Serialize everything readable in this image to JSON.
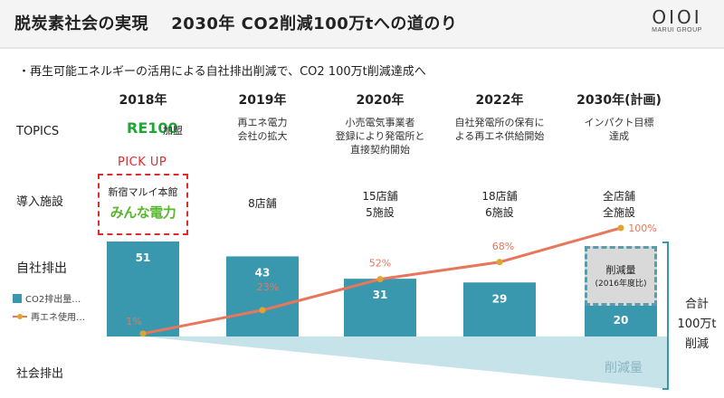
{
  "header": {
    "title": "脱炭素社会の実現　 2030年 CO2削減100万tへの道のり",
    "logo_mark": "OIOI",
    "logo_text": "MARUI GROUP"
  },
  "subtitle": "・再生可能エネルギーの活用による自社排出削減で、CO2 100万t削減達成へ",
  "row_labels": {
    "topics": "TOPICS",
    "facilities": "導入施設",
    "own_emissions": "自社排出",
    "social_emissions": "社会排出"
  },
  "topics": {
    "re100": "RE100",
    "re100_suffix": "加盟",
    "y2019": "再エネ電力\n会社の拡大",
    "y2020": "小売電気事業者\n登録により発電所と\n直接契約開始",
    "y2022": "自社発電所の保有に\nよる再エネ供給開始",
    "y2030": "インパクト目標\n達成"
  },
  "pickup": {
    "label": "PICK UP",
    "store": "新宿マルイ本館",
    "brand": "みんな電力"
  },
  "facilities": {
    "y2019": "8店舗",
    "y2020": "15店舗\n5施設",
    "y2022": "18店舗\n6施設",
    "y2030": "全店舗\n全施設"
  },
  "legend": {
    "bars": "CO2排出量…",
    "line": "再エネ使用…"
  },
  "reduction": {
    "label": "削減量",
    "sub": "(2016年度比)",
    "total": "合計\n100万t\n削減",
    "wedge": "削減量"
  },
  "colors": {
    "bar": "#3a98ae",
    "line": "#e8765a",
    "marker": "#e0a530",
    "wedge": "#c6e3ea",
    "pickup": "#e02b2b",
    "re100": "#22a537",
    "bracket": "#3a98ae"
  },
  "chart_data": {
    "type": "bar",
    "categories": [
      "2018年",
      "2019年",
      "2020年",
      "2022年",
      "2030年(計画)"
    ],
    "series": [
      {
        "name": "CO2排出量…",
        "type": "bar",
        "values": [
          51,
          43,
          31,
          29,
          20
        ]
      },
      {
        "name": "再エネ使用…",
        "type": "line",
        "values": [
          1,
          23,
          52,
          68,
          100
        ],
        "labels": [
          "1%",
          "23%",
          "52%",
          "68%",
          "100%"
        ]
      }
    ]
  }
}
